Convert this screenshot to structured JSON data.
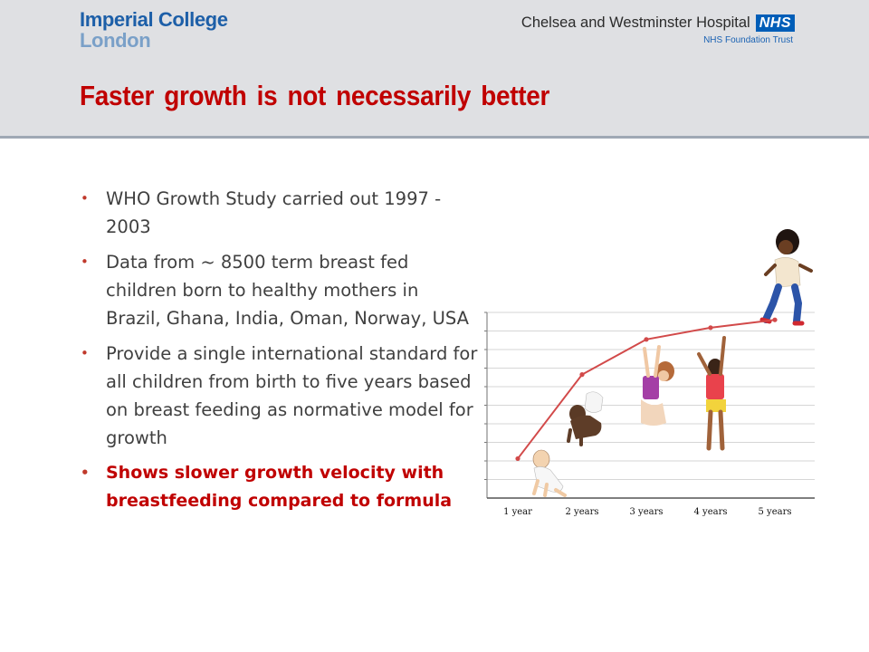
{
  "header": {
    "logo_line1": "Imperial College",
    "logo_line2": "London",
    "hospital_name": "Chelsea and Westminster Hospital",
    "nhs_badge": "NHS",
    "trust": "NHS Foundation Trust"
  },
  "title": "Faster growth is not necessarily better",
  "bullets": [
    "WHO Growth Study carried out 1997 - 2003",
    "Data from ~ 8500 term breast fed children born to healthy mothers in Brazil, Ghana, India, Oman, Norway, USA",
    "Provide a single international standard  for all children from birth to five years based on breast feeding as normative model for growth",
    "Shows slower growth velocity with breastfeeding compared to  formula"
  ],
  "colors": {
    "title": "#c00000",
    "bullet_dot": "#c0392b",
    "highlight": "#c00000",
    "curve": "#d24a4a",
    "header_band": "#dfe0e3"
  },
  "chart_data": {
    "type": "line",
    "categories": [
      "1 year",
      "2 years",
      "3 years",
      "4 years",
      "5 years"
    ],
    "series": [
      {
        "values": [
          1.0,
          5.3,
          7.1,
          7.7,
          8.1
        ]
      }
    ],
    "grid": true,
    "illustrations": [
      "crawling-baby",
      "crouching-toddler",
      "reaching-child",
      "reaching-child-2",
      "running-child"
    ]
  }
}
